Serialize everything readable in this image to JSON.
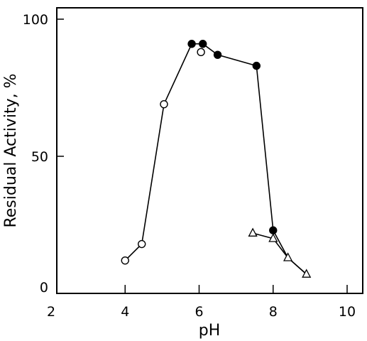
{
  "chart_data": {
    "type": "scatter",
    "title": "",
    "xlabel": "pH",
    "ylabel": "Residual Activity, %",
    "xlim": [
      2,
      10.5
    ],
    "ylim": [
      0,
      103
    ],
    "xticks": [
      2,
      4,
      6,
      8,
      10
    ],
    "yticks": [
      0,
      50,
      100
    ],
    "grid": false,
    "series": [
      {
        "marker": "open-circle",
        "points": [
          [
            4.0,
            12
          ],
          [
            4.45,
            18
          ],
          [
            5.05,
            69
          ],
          [
            6.05,
            88
          ]
        ]
      },
      {
        "marker": "filled-circle",
        "points": [
          [
            5.8,
            91
          ],
          [
            6.1,
            91
          ],
          [
            6.5,
            87
          ],
          [
            7.55,
            83
          ],
          [
            8.0,
            23
          ]
        ]
      },
      {
        "marker": "open-triangle",
        "points": [
          [
            7.45,
            22
          ],
          [
            8.0,
            20
          ],
          [
            8.4,
            13
          ],
          [
            8.9,
            7
          ]
        ]
      }
    ],
    "line": {
      "points": [
        [
          4.0,
          12
        ],
        [
          4.45,
          18
        ],
        [
          5.05,
          69
        ],
        [
          5.8,
          91
        ],
        [
          6.1,
          91
        ],
        [
          6.5,
          87
        ],
        [
          7.55,
          83
        ],
        [
          8.0,
          23
        ]
      ]
    },
    "line2": {
      "points": [
        [
          8.0,
          23
        ],
        [
          8.4,
          13
        ],
        [
          8.9,
          7
        ]
      ]
    }
  }
}
